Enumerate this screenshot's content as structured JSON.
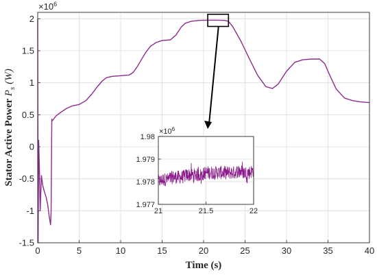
{
  "chart_data": [
    {
      "type": "line",
      "xlabel": "Time (s)",
      "ylabel": "Stator Active Power P_s (W)",
      "ylabel_parts": {
        "text": "Stator Active Power ",
        "symbol": "P",
        "subscript": "s",
        "unit": "(W)"
      },
      "exponent_label": {
        "base": "×10",
        "power": "6"
      },
      "xlim": [
        0,
        40
      ],
      "ylim": [
        -1500000.0,
        2100000.0
      ],
      "xticks": [
        0,
        5,
        10,
        15,
        20,
        25,
        30,
        35,
        40
      ],
      "yticks": [
        -1500000.0,
        -1000000.0,
        -500000.0,
        0,
        500000.0,
        1000000.0,
        1500000.0,
        2000000.0
      ],
      "ytick_labels": [
        "-1.5",
        "-1",
        "-0.5",
        "0",
        "0.5",
        "1",
        "1.5",
        "2"
      ],
      "grid": true,
      "series": [
        {
          "color": "#8b2b8b",
          "x": [
            0,
            0.05,
            0.12,
            0.2,
            0.3,
            0.45,
            0.6,
            0.8,
            1.0,
            1.2,
            1.4,
            1.55,
            1.62,
            1.7,
            1.72,
            1.9,
            2.2,
            2.8,
            3.5,
            4.2,
            5.0,
            5.8,
            6.5,
            7.2,
            7.8,
            8.3,
            9.0,
            10.0,
            11.0,
            11.5,
            12.0,
            12.5,
            13.0,
            13.6,
            14.3,
            15.0,
            16.0,
            16.7,
            17.3,
            17.8,
            18.5,
            19.5,
            20.5,
            21.5,
            22.5,
            23.0,
            23.5,
            24.5,
            25.5,
            26.5,
            27.5,
            28.3,
            29.0,
            30.0,
            31.0,
            32.0,
            33.0,
            34.0,
            34.6,
            35.2,
            36.0,
            37.0,
            38.0,
            39.0,
            40.0
          ],
          "y": [
            2000000.0,
            -1500000.0,
            100000.0,
            -300000.0,
            -1000000.0,
            -450000.0,
            -600000.0,
            -700000.0,
            -780000.0,
            -900000.0,
            -1100000.0,
            -1220000.0,
            -1000000.0,
            430000.0,
            400000.0,
            430000.0,
            480000.0,
            540000.0,
            600000.0,
            640000.0,
            660000.0,
            720000.0,
            820000.0,
            940000.0,
            1030000.0,
            1080000.0,
            1100000.0,
            1110000.0,
            1120000.0,
            1160000.0,
            1250000.0,
            1360000.0,
            1470000.0,
            1570000.0,
            1630000.0,
            1660000.0,
            1670000.0,
            1750000.0,
            1870000.0,
            1930000.0,
            1960000.0,
            1975000.0,
            1978000.0,
            1978000.0,
            1975000.0,
            1960000.0,
            1880000.0,
            1650000.0,
            1380000.0,
            1120000.0,
            940000.0,
            910000.0,
            980000.0,
            1180000.0,
            1320000.0,
            1360000.0,
            1370000.0,
            1370000.0,
            1300000.0,
            1120000.0,
            900000.0,
            760000.0,
            720000.0,
            700000.0,
            690000.0
          ]
        }
      ]
    },
    {
      "type": "line",
      "role": "inset-zoom",
      "exponent_label": {
        "base": "×10",
        "power": "6"
      },
      "xlim": [
        21,
        22
      ],
      "ylim": [
        1977000.0,
        1980000.0
      ],
      "xticks": [
        21,
        21.5,
        22
      ],
      "xtick_labels": [
        "21",
        "21.5",
        "22"
      ],
      "yticks": [
        1977000.0,
        1978000.0,
        1979000.0,
        1980000.0
      ],
      "ytick_labels": [
        "1.977",
        "1.978",
        "1.979",
        "1.98"
      ],
      "grid": true,
      "series": [
        {
          "color": "#8b1a8b",
          "x": [
            21,
            21.05,
            21.1,
            21.15,
            21.2,
            21.25,
            21.3,
            21.35,
            21.4,
            21.45,
            21.5,
            21.55,
            21.6,
            21.65,
            21.7,
            21.75,
            21.8,
            21.85,
            21.9,
            21.95,
            22
          ],
          "y": [
            1978000.0,
            1978100.0,
            1978100.0,
            1978200.0,
            1978200.0,
            1978200.0,
            1978300.0,
            1978300.0,
            1978300.0,
            1978300.0,
            1978400.0,
            1978400.0,
            1978400.0,
            1978400.0,
            1978400.0,
            1978400.0,
            1978400.0,
            1978500.0,
            1978400.0,
            1978400.0,
            1978500.0
          ],
          "noise_amplitude": 300.0
        }
      ]
    }
  ]
}
